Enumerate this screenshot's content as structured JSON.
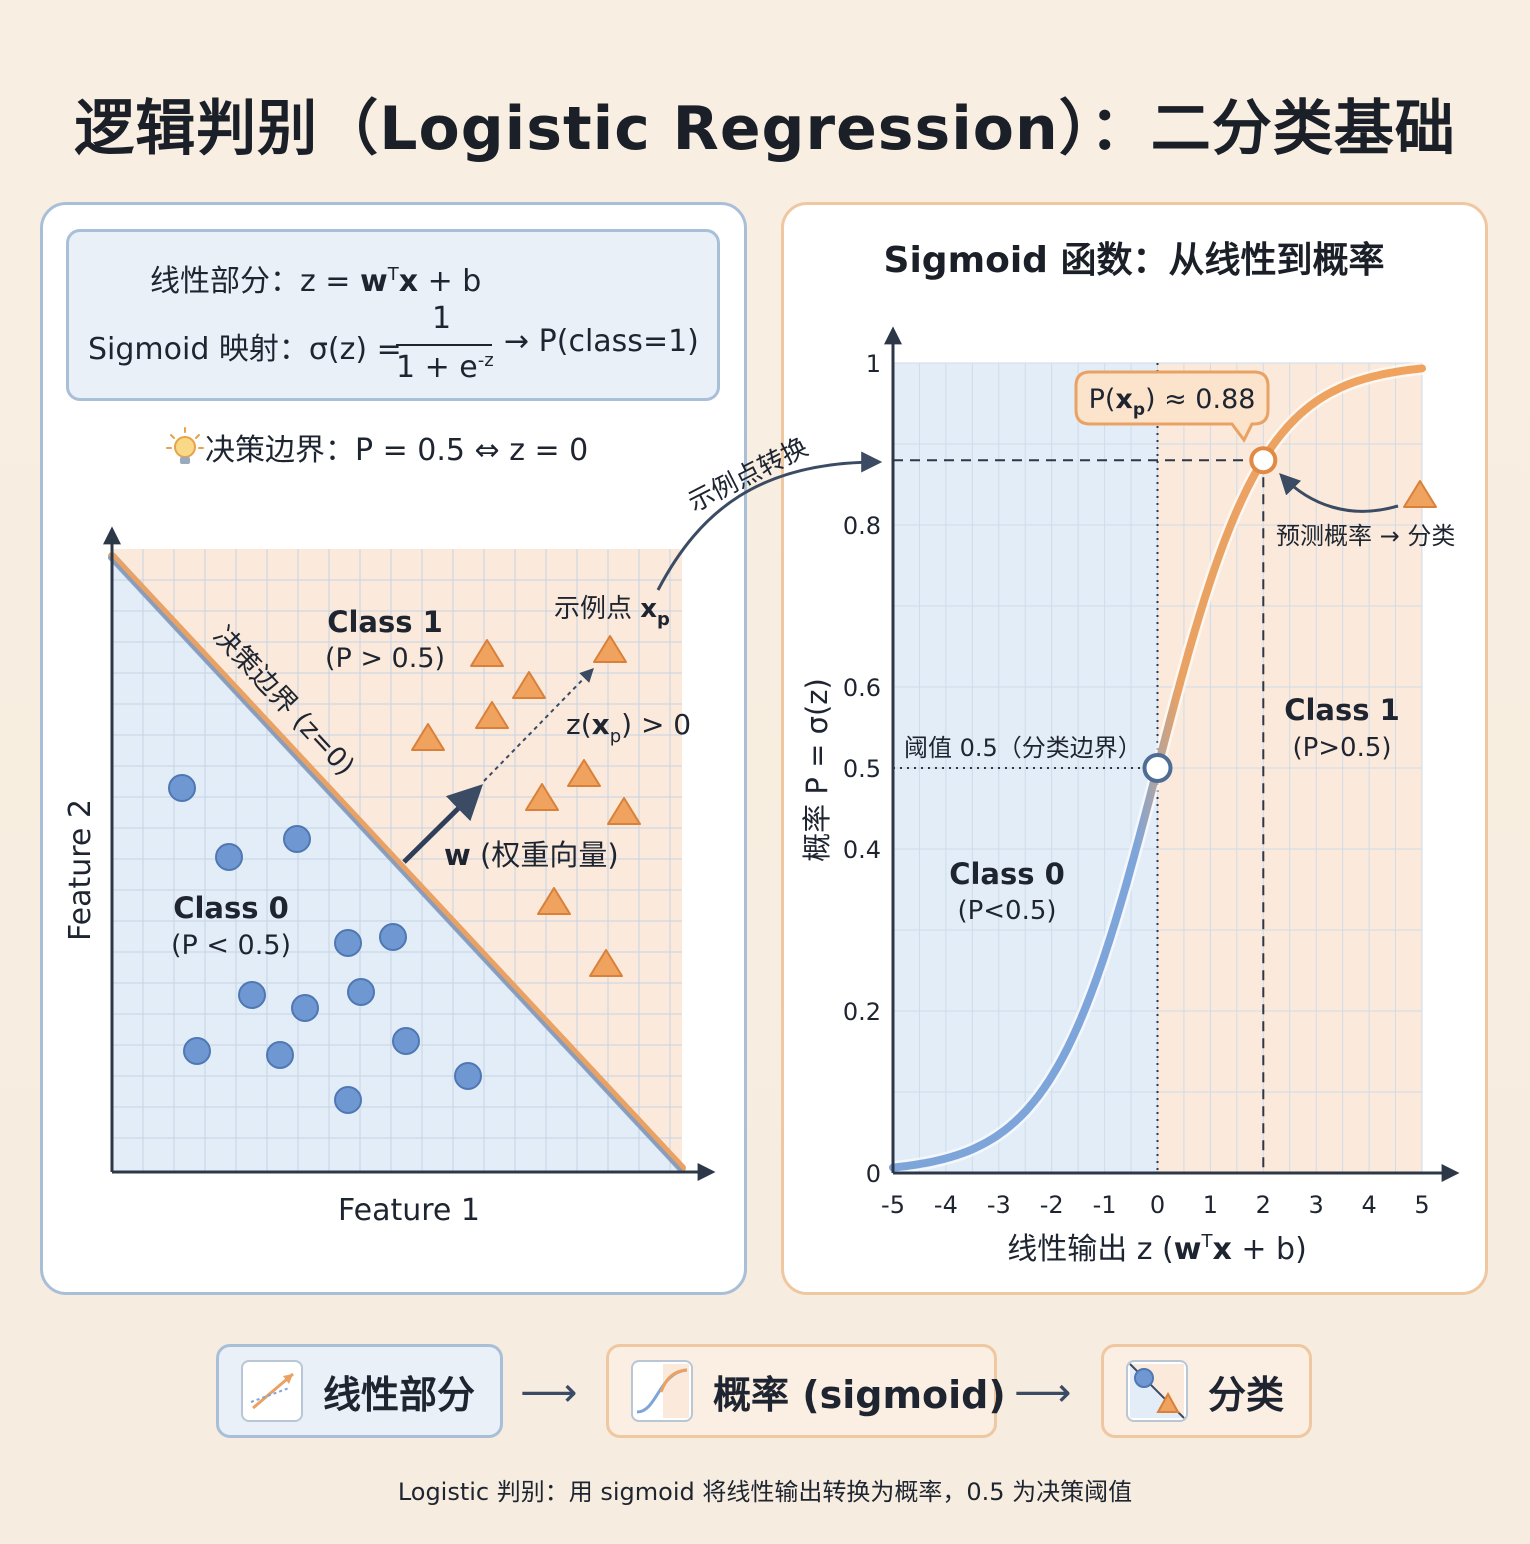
{
  "title": "逻辑判别（Logistic Regression）：二分类基础",
  "formula": {
    "linear_label": "线性部分：",
    "linear_expr_pre": "z = ",
    "linear_expr_w": "w",
    "linear_expr_sup": "T",
    "linear_expr_x": "x",
    "linear_expr_post": " + b",
    "sigmoid_label": "Sigmoid 映射：",
    "sigmoid_lhs": "σ(z) =",
    "sigmoid_num": "1",
    "sigmoid_den_pre": "1 + e",
    "sigmoid_den_sup": "-z",
    "sigmoid_rhs": "→ P(class=1)"
  },
  "boundary_note": "决策边界：P = 0.5 ⇔ z = 0",
  "left_plot": {
    "xlabel": "Feature 1",
    "ylabel": "Feature 2",
    "boundary_label": "决策边界 (z=0)",
    "class1_name": "Class 1",
    "class1_prob": "(P > 0.5)",
    "class0_name": "Class 0",
    "class0_prob": "(P < 0.5)",
    "weight_label_w": "w",
    "weight_label_rest": " (权重向量)",
    "example_label": "示例点 ",
    "example_sym": "x",
    "example_sub": "p",
    "z_label_pre": "z(",
    "z_label_x": "x",
    "z_label_sub": "p",
    "z_label_post": ") > 0",
    "transform_label": "示例点转换",
    "colors": {
      "class0": "#6f98d3",
      "class1": "#f0a35e",
      "class0_bg": "#e3edf8",
      "class1_bg": "#fbeadb"
    }
  },
  "right_panel": {
    "title": "Sigmoid 函数：从线性到概率",
    "xlabel_pre": "线性输出 z (",
    "xlabel_w": "w",
    "xlabel_sup": "T",
    "xlabel_x": "x",
    "xlabel_post": " + b)",
    "ylabel": "概率 P = σ(z)",
    "threshold_label": "阈值 0.5（分类边界）",
    "class0_name": "Class 0",
    "class0_prob": "(P<0.5)",
    "class1_name": "Class 1",
    "class1_prob": "(P>0.5)",
    "callout_pre": "P(",
    "callout_x": "x",
    "callout_sub": "p",
    "callout_post": ") ≈ 0.88",
    "predict_label": "预测概率 → 分类"
  },
  "chart_data": {
    "type": "line",
    "title": "Sigmoid 函数：从线性到概率",
    "xlabel": "线性输出 z (wTx + b)",
    "ylabel": "概率 P = σ(z)",
    "xlim": [
      -5,
      5
    ],
    "ylim": [
      0,
      1
    ],
    "x_ticks": [
      "-5",
      "-4",
      "-3",
      "-2",
      "-1",
      "0",
      "1",
      "2",
      "3",
      "4",
      "5"
    ],
    "y_ticks": [
      "0",
      "0.2",
      "0.4",
      "0.5",
      "0.6",
      "0.8",
      "1"
    ],
    "series": [
      {
        "x": [
          -5,
          -4,
          -3,
          -2,
          -1,
          0,
          1,
          2,
          3,
          4,
          5
        ],
        "y": [
          0.0067,
          0.018,
          0.047,
          0.119,
          0.269,
          0.5,
          0.731,
          0.881,
          0.953,
          0.982,
          0.993
        ]
      }
    ],
    "threshold": 0.5,
    "example_point": {
      "z": 2,
      "p": 0.88
    }
  },
  "flow": {
    "step1": "线性部分",
    "step2": "概率 (sigmoid)",
    "step3": "分类",
    "arrow": "⟶"
  },
  "caption": "Logistic 判别：用 sigmoid 将线性输出转换为概率，0.5 为决策阈值"
}
